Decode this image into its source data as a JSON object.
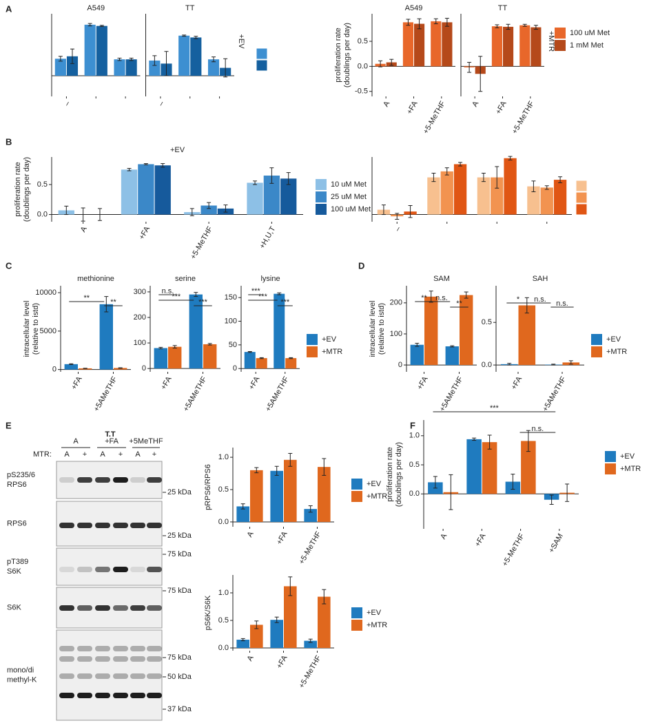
{
  "panel_labels": [
    "A",
    "B",
    "C",
    "D",
    "E",
    "F"
  ],
  "chart_data": [
    {
      "type": "bar",
      "ylim": [
        -0.34,
        1.02
      ],
      "side_label": "+EV",
      "legend_colors": [
        "#3d8fd1",
        "#15609f"
      ],
      "facets": [
        {
          "title": "A549",
          "categories": [
            "–",
            null,
            null
          ],
          "series": [
            {
              "color": "#3d8fd1",
              "values": [
                0.28,
                0.84,
                0.27
              ],
              "errors": [
                0.04,
                0.02,
                0.02
              ]
            },
            {
              "color": "#15609f",
              "values": [
                0.32,
                0.82,
                0.27
              ],
              "errors": [
                0.12,
                0.01,
                0.02
              ]
            }
          ]
        },
        {
          "title": "TT",
          "categories": [
            "–",
            null,
            null
          ],
          "series": [
            {
              "color": "#3d8fd1",
              "values": [
                0.25,
                0.66,
                0.27
              ],
              "errors": [
                0.08,
                0.01,
                0.04
              ]
            },
            {
              "color": "#15609f",
              "values": [
                0.2,
                0.63,
                0.13
              ],
              "errors": [
                0.2,
                0.02,
                0.15
              ]
            }
          ]
        }
      ]
    },
    {
      "type": "bar",
      "ylim": [
        -0.6,
        1.05
      ],
      "ylabel": [
        "proliferation rate",
        "(doublings per day)"
      ],
      "side_label": "+MTR",
      "yticks": [
        {
          "value": -0.5,
          "label": "-0.5"
        },
        {
          "value": 0,
          "label": "0.0"
        },
        {
          "value": 0.5,
          "label": "0.5"
        }
      ],
      "facets": [
        {
          "title": "A549",
          "categories": [
            "A",
            "+FA",
            "+5-MeTHF"
          ],
          "series": [
            {
              "name": "100 uM Met",
              "color": "#e8672a",
              "values": [
                0.05,
                0.88,
                0.9
              ],
              "errors": [
                0.06,
                0.06,
                0.05
              ]
            },
            {
              "name": "1 mM Met",
              "color": "#b5491a",
              "values": [
                0.08,
                0.85,
                0.88
              ],
              "errors": [
                0.06,
                0.1,
                0.08
              ]
            }
          ]
        },
        {
          "title": "TT",
          "categories": [
            "A",
            "+FA",
            "+5-MeTHF"
          ],
          "series": [
            {
              "color": "#e8672a",
              "values": [
                -0.02,
                0.8,
                0.82
              ],
              "errors": [
                0.1,
                0.03,
                0.02
              ]
            },
            {
              "color": "#b5491a",
              "values": [
                -0.15,
                0.79,
                0.78
              ],
              "errors": [
                0.35,
                0.05,
                0.04
              ]
            }
          ]
        }
      ]
    },
    {
      "type": "bar",
      "title": "+EV",
      "ylim": [
        -0.12,
        0.96
      ],
      "ylabel": [
        "proliferation rate",
        "(doublings per day)"
      ],
      "yticks": [
        {
          "value": 0,
          "label": "0.0"
        },
        0.5
      ],
      "categories": [
        "A",
        "+FA",
        "+5-MeTHF",
        "+H,U,T"
      ],
      "series": [
        {
          "name": "10 uM Met",
          "color": "#8dc0e6",
          "values": [
            0.07,
            0.75,
            0.04,
            0.53
          ],
          "errors": [
            0.07,
            0.02,
            0.06,
            0.03
          ]
        },
        {
          "name": "25 uM Met",
          "color": "#3b88c8",
          "values": [
            0.0,
            0.84,
            0.15,
            0.65
          ],
          "errors": [
            0.11,
            0.01,
            0.05,
            0.13
          ]
        },
        {
          "name": "100 uM Met",
          "color": "#165a9c",
          "values": [
            0.0,
            0.82,
            0.1,
            0.6
          ],
          "errors": [
            0.1,
            0.03,
            0.06,
            0.1
          ]
        }
      ]
    },
    {
      "type": "bar",
      "ylim": [
        -0.12,
        0.96
      ],
      "legend_colors": [
        "#f7c08f",
        "#f29350",
        "#e05614"
      ],
      "categories": [
        "–",
        null,
        null,
        null
      ],
      "series": [
        {
          "color": "#f7c08f",
          "values": [
            0.08,
            0.62,
            0.62,
            0.47
          ],
          "errors": [
            0.08,
            0.07,
            0.07,
            0.09
          ]
        },
        {
          "color": "#f29350",
          "values": [
            -0.03,
            0.72,
            0.62,
            0.45
          ],
          "errors": [
            0.05,
            0.06,
            0.18,
            0.03
          ]
        },
        {
          "color": "#e05614",
          "values": [
            0.05,
            0.84,
            0.94,
            0.58
          ],
          "errors": [
            0.1,
            0.03,
            0.03,
            0.05
          ]
        }
      ]
    },
    {
      "type": "bar",
      "title": "methionine",
      "ylim": [
        -300,
        10900
      ],
      "ylabel": [
        "intracellular level",
        "(relative to istd)"
      ],
      "yticks": [
        0,
        5000,
        10000
      ],
      "significance": [
        "**",
        "**"
      ],
      "categories": [
        "+FA",
        "+5AMeTHF"
      ],
      "series": [
        {
          "color": "#1f7bbf",
          "values": [
            700,
            8500
          ],
          "errors": [
            50,
            1000
          ]
        },
        {
          "color": "#e0681e",
          "values": [
            150,
            200
          ],
          "errors": [
            20,
            30
          ]
        }
      ]
    },
    {
      "type": "bar",
      "title": "serine",
      "ylim": [
        -13,
        324
      ],
      "yticks": [
        0,
        100,
        200,
        300
      ],
      "significance": [
        "n.s.",
        "***",
        "***"
      ],
      "categories": [
        "+FA",
        "+5AMeTHF"
      ],
      "series": [
        {
          "color": "#1f7bbf",
          "values": [
            80,
            290
          ],
          "errors": [
            3,
            8
          ]
        },
        {
          "color": "#e0681e",
          "values": [
            85,
            95
          ],
          "errors": [
            5,
            3
          ]
        }
      ]
    },
    {
      "type": "bar",
      "title": "lysine",
      "ylim": [
        -7,
        175
      ],
      "yticks": [
        0,
        50,
        100,
        150
      ],
      "significance": [
        "***",
        "***",
        "***"
      ],
      "categories": [
        "+FA",
        "+5AMeTHF"
      ],
      "series": [
        {
          "name": "+EV",
          "color": "#1f7bbf",
          "values": [
            35,
            158
          ],
          "errors": [
            1,
            2
          ]
        },
        {
          "name": "+MTR",
          "color": "#e0681e",
          "values": [
            22,
            22
          ],
          "errors": [
            1,
            1
          ]
        }
      ]
    },
    {
      "type": "bar",
      "title": "SAM",
      "ylim": [
        -22,
        255
      ],
      "ylabel": [
        "intracellular level",
        "(relative to istd)"
      ],
      "yticks": [
        0,
        100,
        200
      ],
      "significance": [
        "**",
        "n.s.",
        "**"
      ],
      "categories": [
        "+FA",
        "+5AMeTHF"
      ],
      "series": [
        {
          "color": "#1f7bbf",
          "values": [
            65,
            60
          ],
          "errors": [
            5,
            2
          ]
        },
        {
          "color": "#e0681e",
          "values": [
            220,
            225
          ],
          "errors": [
            18,
            10
          ]
        }
      ]
    },
    {
      "type": "bar",
      "title": "SAH",
      "ylim": [
        -0.08,
        0.93
      ],
      "yticks": [
        {
          "value": 0,
          "label": "0.0"
        },
        0.5
      ],
      "significance": [
        "*",
        "n.s.",
        "n.s."
      ],
      "categories": [
        "+FA",
        "+5AMeTHF"
      ],
      "series": [
        {
          "name": "+EV",
          "color": "#1f7bbf",
          "values": [
            0.01,
            0.005
          ],
          "errors": [
            0.01,
            0.005
          ]
        },
        {
          "name": "+MTR",
          "color": "#e0681e",
          "values": [
            0.7,
            0.03
          ],
          "errors": [
            0.09,
            0.02
          ]
        }
      ]
    },
    {
      "type": "bar",
      "ylim": [
        -0.075,
        1.15
      ],
      "ylabel": [
        "pRPS6/RPS6"
      ],
      "yticks": [
        {
          "value": 0,
          "label": "0.0"
        },
        0.5,
        {
          "value": 1,
          "label": "1.0"
        }
      ],
      "categories": [
        "A",
        "+FA",
        "+5-MeTHF"
      ],
      "series": [
        {
          "name": "+EV",
          "color": "#1f7bbf",
          "values": [
            0.24,
            0.79,
            0.2
          ],
          "errors": [
            0.04,
            0.07,
            0.05
          ]
        },
        {
          "name": "+MTR",
          "color": "#e0681e",
          "values": [
            0.8,
            0.96,
            0.85
          ],
          "errors": [
            0.04,
            0.1,
            0.13
          ]
        }
      ]
    },
    {
      "type": "bar",
      "ylim": [
        -0.05,
        1.325
      ],
      "ylabel": [
        "pS6K/S6K"
      ],
      "yticks": [
        {
          "value": 0,
          "label": "0.0"
        },
        0.5,
        {
          "value": 1,
          "label": "1.0"
        }
      ],
      "categories": [
        "A",
        "+FA",
        "+5-MeTHF"
      ],
      "series": [
        {
          "name": "+EV",
          "color": "#1f7bbf",
          "values": [
            0.15,
            0.51,
            0.13
          ],
          "errors": [
            0.02,
            0.05,
            0.03
          ]
        },
        {
          "name": "+MTR",
          "color": "#e0681e",
          "values": [
            0.42,
            1.12,
            0.93
          ],
          "errors": [
            0.07,
            0.17,
            0.13
          ]
        }
      ]
    },
    {
      "type": "bar",
      "ylim": [
        -0.6,
        1.27
      ],
      "ylabel": [
        "proliferation rate",
        "(doublings per day)"
      ],
      "yticks": [
        {
          "value": 0,
          "label": "0.0"
        },
        0.5,
        {
          "value": 1,
          "label": "1.0"
        }
      ],
      "significance": [
        "***",
        "n.s."
      ],
      "categories": [
        "A",
        "+FA",
        "+5-MeTHF",
        "+SAM"
      ],
      "series": [
        {
          "name": "+EV",
          "color": "#1f7bbf",
          "values": [
            0.2,
            0.94,
            0.21,
            -0.1
          ],
          "errors": [
            0.1,
            0.02,
            0.13,
            0.08
          ]
        },
        {
          "name": "+MTR",
          "color": "#e0681e",
          "values": [
            0.03,
            0.89,
            0.91,
            0.02
          ],
          "errors": [
            0.3,
            0.12,
            0.18,
            0.15
          ]
        }
      ]
    }
  ],
  "blot": {
    "title": "T.T",
    "groups": [
      "A",
      "+FA",
      "+5MeTHF"
    ],
    "mtr_label": "MTR:",
    "lanes": [
      "A",
      "+",
      "A",
      "+",
      "A",
      "+"
    ],
    "rows": [
      {
        "label": [
          "pS235/6",
          "RPS6"
        ],
        "markers": [
          "25 kDa"
        ]
      },
      {
        "label": [
          "RPS6"
        ],
        "markers": [
          "25 kDa"
        ]
      },
      {
        "label": [
          "pT389",
          "S6K"
        ],
        "markers": [
          "75 kDa"
        ]
      },
      {
        "label": [
          "S6K"
        ],
        "markers": [
          "75 kDa"
        ]
      },
      {
        "label": [
          "mono/di",
          "methyl-K"
        ],
        "markers": [
          "75 kDa",
          "50 kDa",
          "37 kDa"
        ]
      }
    ]
  }
}
